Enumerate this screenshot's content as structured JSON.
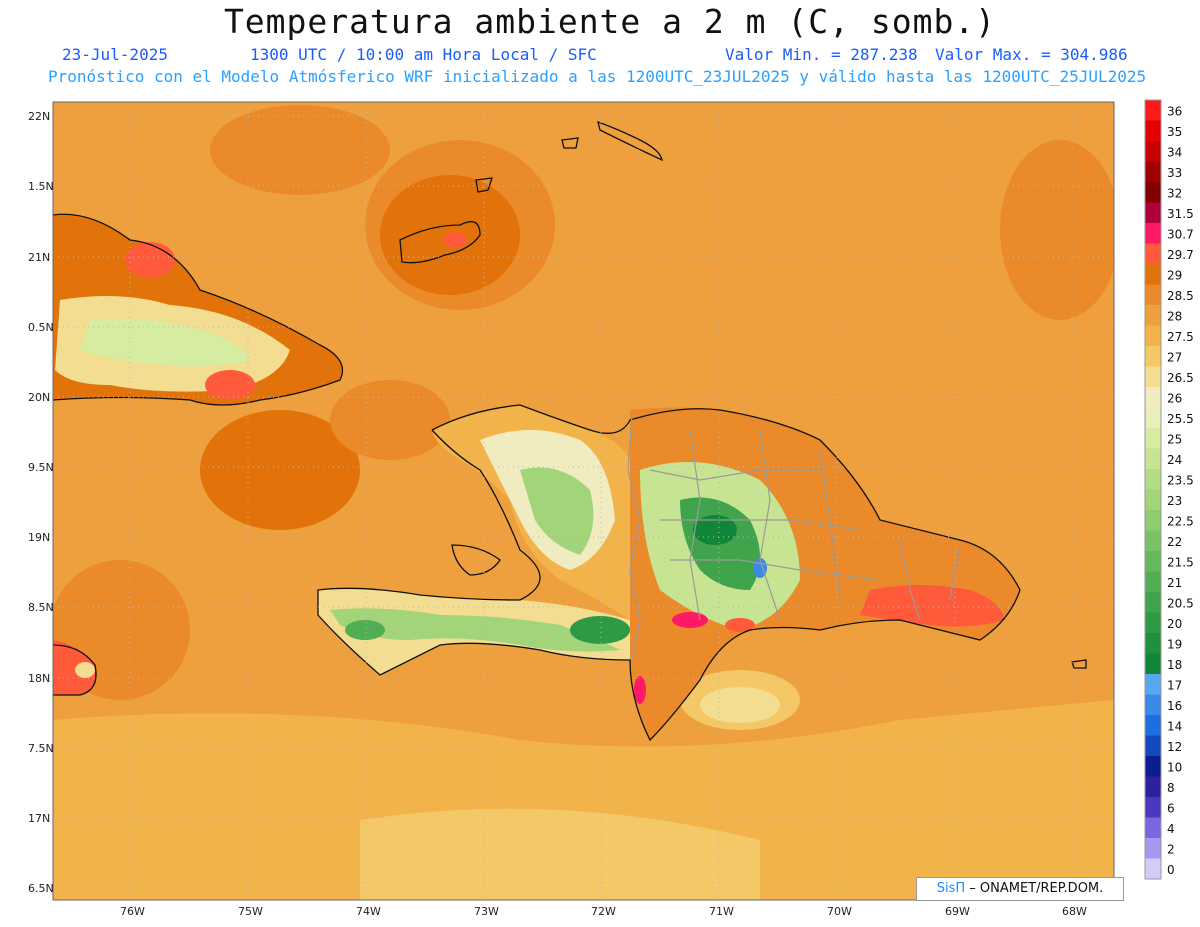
{
  "title": "Temperatura ambiente a 2 m (C, somb.)",
  "subtitle": {
    "date": "23-Jul-2025",
    "time": "1300 UTC / 10:00 am Hora Local / SFC",
    "value_min": "Valor Min. = 287.238",
    "value_max": "Valor Max. = 304.986"
  },
  "description": "Pronóstico con el Modelo Atmósferico WRF inicializado a las 1200UTC_23JUL2025 y válido hasta las  1200UTC_25JUL2025",
  "credit": {
    "brand": "SisΠ",
    "text": " – ONAMET/REP.DOM."
  },
  "lat_labels": [
    "22N",
    "1.5N",
    "21N",
    "0.5N",
    "20N",
    "9.5N",
    "19N",
    "8.5N",
    "18N",
    "7.5N",
    "17N",
    "6.5N"
  ],
  "lon_labels": [
    "76W",
    "75W",
    "74W",
    "73W",
    "72W",
    "71W",
    "70W",
    "69W",
    "68W"
  ],
  "colorbar": [
    {
      "label": "36",
      "color": "#ff1a1a"
    },
    {
      "label": "35",
      "color": "#e60000"
    },
    {
      "label": "34",
      "color": "#c80000"
    },
    {
      "label": "33",
      "color": "#a00000"
    },
    {
      "label": "32",
      "color": "#820000"
    },
    {
      "label": "31.5",
      "color": "#b0003a"
    },
    {
      "label": "30.7",
      "color": "#ff1a66"
    },
    {
      "label": "29.7",
      "color": "#ff5a3a"
    },
    {
      "label": "29",
      "color": "#e2720a"
    },
    {
      "label": "28.5",
      "color": "#ea8a2a"
    },
    {
      "label": "28",
      "color": "#eea03e"
    },
    {
      "label": "27.5",
      "color": "#f2b44a"
    },
    {
      "label": "27",
      "color": "#f4c866"
    },
    {
      "label": "26.5",
      "color": "#f2dd90"
    },
    {
      "label": "26",
      "color": "#f0ecc0"
    },
    {
      "label": "25.5",
      "color": "#e6f0b8"
    },
    {
      "label": "25",
      "color": "#d6eca0"
    },
    {
      "label": "24",
      "color": "#c6e492"
    },
    {
      "label": "23.5",
      "color": "#b4dc86"
    },
    {
      "label": "23",
      "color": "#a2d47a"
    },
    {
      "label": "22.5",
      "color": "#8ecc70"
    },
    {
      "label": "22",
      "color": "#7ac266"
    },
    {
      "label": "21.5",
      "color": "#66b85c"
    },
    {
      "label": "21",
      "color": "#52ae54"
    },
    {
      "label": "20.5",
      "color": "#40a44c"
    },
    {
      "label": "20",
      "color": "#2e9a44"
    },
    {
      "label": "19",
      "color": "#1e903e"
    },
    {
      "label": "18",
      "color": "#108638"
    },
    {
      "label": "17",
      "color": "#58a8f0"
    },
    {
      "label": "16",
      "color": "#3a8ae8"
    },
    {
      "label": "14",
      "color": "#1f6ee0"
    },
    {
      "label": "12",
      "color": "#1448c0"
    },
    {
      "label": "10",
      "color": "#0a1e90"
    },
    {
      "label": "8",
      "color": "#2c22a0"
    },
    {
      "label": "6",
      "color": "#4a38c0"
    },
    {
      "label": "4",
      "color": "#7a66e0"
    },
    {
      "label": "2",
      "color": "#a698f0"
    },
    {
      "label": "0",
      "color": "#d4ccf8"
    }
  ]
}
